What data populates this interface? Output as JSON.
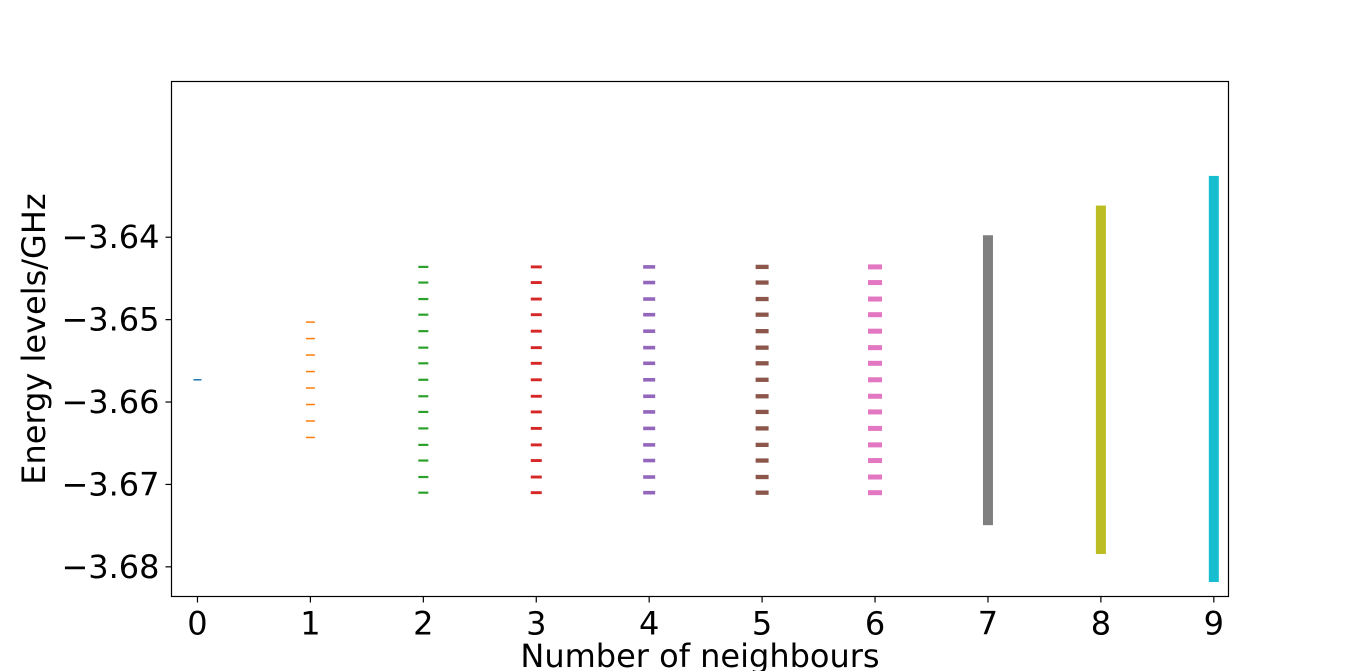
{
  "chart_data": {
    "type": "scatter",
    "marker": "horizontal-line",
    "title": "",
    "xlabel": "Number of neighbours",
    "ylabel": "Energy levels/GHz",
    "xlim": [
      -0.23,
      9.13
    ],
    "ylim": [
      -3.6836,
      -3.6211
    ],
    "xticks": [
      0,
      1,
      2,
      3,
      4,
      5,
      6,
      7,
      8,
      9
    ],
    "xtick_labels": [
      "0",
      "1",
      "2",
      "3",
      "4",
      "5",
      "6",
      "7",
      "8",
      "9"
    ],
    "yticks": [
      -3.64,
      -3.65,
      -3.66,
      -3.67,
      -3.68
    ],
    "ytick_labels": [
      "−3.64",
      "−3.65",
      "−3.66",
      "−3.67",
      "−3.68"
    ],
    "grid": false,
    "legend": false,
    "series": [
      {
        "x": 0,
        "color": "#1f77b4",
        "band": false,
        "values": [
          -3.6573
        ]
      },
      {
        "x": 1,
        "color": "#ff7f0e",
        "band": false,
        "values": [
          -3.6503,
          -3.6523,
          -3.6543,
          -3.6563,
          -3.6583,
          -3.6603,
          -3.6623,
          -3.6643
        ]
      },
      {
        "x": 2,
        "color": "#2ca02c",
        "band": false,
        "values": [
          -3.6436,
          -3.6455,
          -3.6475,
          -3.6494,
          -3.6514,
          -3.6534,
          -3.6553,
          -3.6573,
          -3.6593,
          -3.6612,
          -3.6632,
          -3.6652,
          -3.6671,
          -3.6691,
          -3.671
        ]
      },
      {
        "x": 3,
        "color": "#d62728",
        "band": false,
        "values": [
          -3.6436,
          -3.6455,
          -3.6475,
          -3.6494,
          -3.6514,
          -3.6534,
          -3.6553,
          -3.6573,
          -3.6593,
          -3.6612,
          -3.6632,
          -3.6652,
          -3.6671,
          -3.6691,
          -3.671
        ]
      },
      {
        "x": 4,
        "color": "#9467bd",
        "band": false,
        "values": [
          -3.6436,
          -3.6455,
          -3.6475,
          -3.6494,
          -3.6514,
          -3.6534,
          -3.6553,
          -3.6573,
          -3.6593,
          -3.6612,
          -3.6632,
          -3.6652,
          -3.6671,
          -3.6691,
          -3.671
        ]
      },
      {
        "x": 5,
        "color": "#8c564b",
        "band": false,
        "values": [
          -3.6436,
          -3.6455,
          -3.6475,
          -3.6494,
          -3.6514,
          -3.6534,
          -3.6553,
          -3.6573,
          -3.6593,
          -3.6612,
          -3.6632,
          -3.6652,
          -3.6671,
          -3.6691,
          -3.671
        ]
      },
      {
        "x": 6,
        "color": "#e377c2",
        "band": false,
        "values": [
          -3.6436,
          -3.6455,
          -3.6475,
          -3.6494,
          -3.6514,
          -3.6534,
          -3.6553,
          -3.6573,
          -3.6593,
          -3.6612,
          -3.6632,
          -3.6652,
          -3.6671,
          -3.6691,
          -3.671
        ]
      },
      {
        "x": 7,
        "color": "#7f7f7f",
        "band": true,
        "min": -3.6747,
        "max": -3.64
      },
      {
        "x": 8,
        "color": "#bcbd22",
        "band": true,
        "min": -3.6782,
        "max": -3.6364
      },
      {
        "x": 9,
        "color": "#17becf",
        "band": true,
        "min": -3.6816,
        "max": -3.6328
      }
    ]
  }
}
